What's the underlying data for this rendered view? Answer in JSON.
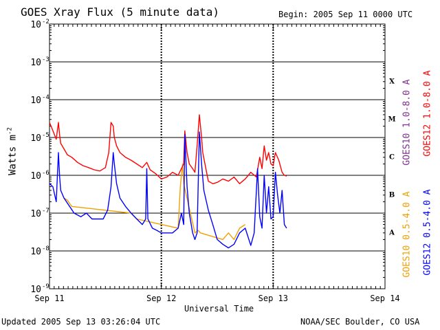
{
  "header": {
    "title": "GOES Xray Flux (5 minute data)",
    "begin": "Begin:  2005 Sep 11 0000 UTC"
  },
  "footer": {
    "updated": "Updated 2005 Sep 13 03:26:04 UTC",
    "credit": "NOAA/SEC Boulder, CO USA"
  },
  "colors": {
    "goes10_long": "#7f2f8f",
    "goes12_long": "#ff0000",
    "goes10_short": "#f0a000",
    "goes12_short": "#0000ff",
    "axis": "#000000"
  },
  "chart_data": {
    "type": "line",
    "title": "GOES Xray Flux (5 minute data)",
    "xlabel": "Universal Time",
    "ylabel": "Watts m",
    "ylabel_superscript": "-2",
    "yscale": "log",
    "ylim": [
      1e-09,
      0.01
    ],
    "xlim": [
      0,
      3
    ],
    "x_units": "days since 2005 Sep 11 0000 UTC",
    "x_ticks": [
      {
        "x": 0,
        "label": "Sep 11"
      },
      {
        "x": 1,
        "label": "Sep 12"
      },
      {
        "x": 2,
        "label": "Sep 13"
      },
      {
        "x": 3,
        "label": "Sep 14"
      }
    ],
    "y_ticks": [
      {
        "exp": -9,
        "base": "10",
        "sup": "-9"
      },
      {
        "exp": -8,
        "base": "10",
        "sup": "-8"
      },
      {
        "exp": -7,
        "base": "10",
        "sup": "-7"
      },
      {
        "exp": -6,
        "base": "10",
        "sup": "-6"
      },
      {
        "exp": -5,
        "base": "10",
        "sup": "-5"
      },
      {
        "exp": -4,
        "base": "10",
        "sup": "-4"
      },
      {
        "exp": -3,
        "base": "10",
        "sup": "-3"
      },
      {
        "exp": -2,
        "base": "10",
        "sup": "-2"
      }
    ],
    "flare_classes": [
      {
        "label": "A",
        "exp": -7.5
      },
      {
        "label": "B",
        "exp": -6.5
      },
      {
        "label": "C",
        "exp": -5.5
      },
      {
        "label": "M",
        "exp": -4.5
      },
      {
        "label": "X",
        "exp": -3.5
      }
    ],
    "gridlines_at": [
      -8,
      -7,
      -6,
      -5,
      -4,
      -3
    ],
    "legend": {
      "placement": "right",
      "entries": [
        {
          "label": "GOES10 1.0-8.0 A",
          "color": "#7f2f8f"
        },
        {
          "label": "GOES12 1.0-8.0 A",
          "color": "#ff0000"
        },
        {
          "label": "GOES10 0.5-4.0 A",
          "color": "#f0a000"
        },
        {
          "label": "GOES12 0.5-4.0 A",
          "color": "#0000ff"
        }
      ]
    },
    "series": [
      {
        "name": "GOES12 1.0-8.0 A",
        "color": "#ff0000",
        "x": [
          0.0,
          0.02,
          0.06,
          0.08,
          0.09,
          0.1,
          0.13,
          0.16,
          0.2,
          0.25,
          0.3,
          0.35,
          0.4,
          0.45,
          0.5,
          0.53,
          0.55,
          0.57,
          0.58,
          0.6,
          0.63,
          0.68,
          0.73,
          0.78,
          0.83,
          0.87,
          0.9,
          0.95,
          1.0,
          1.05,
          1.1,
          1.15,
          1.2,
          1.21,
          1.23,
          1.25,
          1.28,
          1.3,
          1.32,
          1.34,
          1.36,
          1.37,
          1.39,
          1.42,
          1.46,
          1.5,
          1.55,
          1.6,
          1.65,
          1.7,
          1.75,
          1.8,
          1.85,
          1.88,
          1.9,
          1.92,
          1.94,
          1.96,
          1.98,
          2.0,
          2.02,
          2.05,
          2.08,
          2.1,
          2.12
        ],
        "y": [
          2.5e-05,
          1.8e-05,
          9e-06,
          2.5e-05,
          1.2e-05,
          7e-06,
          5e-06,
          3.5e-06,
          3e-06,
          2.2e-06,
          1.8e-06,
          1.6e-06,
          1.4e-06,
          1.3e-06,
          1.6e-06,
          4e-06,
          2.5e-05,
          2e-05,
          1e-05,
          6e-06,
          4e-06,
          3e-06,
          2.5e-06,
          2e-06,
          1.6e-06,
          2.2e-06,
          1.4e-06,
          1.1e-06,
          8e-07,
          9e-07,
          1.2e-06,
          1e-06,
          2e-06,
          1.5e-05,
          4e-06,
          2e-06,
          1.5e-06,
          1.2e-06,
          6e-06,
          4e-05,
          1e-05,
          4e-06,
          2e-06,
          7e-07,
          6e-07,
          6.5e-07,
          8e-07,
          7e-07,
          9e-07,
          6e-07,
          8e-07,
          1.2e-06,
          9e-07,
          3e-06,
          1.5e-06,
          6e-06,
          2.5e-06,
          4e-06,
          2e-06,
          1.8e-06,
          4e-06,
          2.5e-06,
          1.2e-06,
          1e-06,
          9.5e-07
        ]
      },
      {
        "name": "GOES12 0.5-4.0 A",
        "color": "#0000ff",
        "x": [
          0.0,
          0.03,
          0.06,
          0.08,
          0.09,
          0.1,
          0.13,
          0.18,
          0.22,
          0.28,
          0.33,
          0.38,
          0.43,
          0.48,
          0.52,
          0.55,
          0.57,
          0.58,
          0.6,
          0.63,
          0.68,
          0.73,
          0.78,
          0.83,
          0.86,
          0.87,
          0.88,
          0.92,
          0.96,
          1.0,
          1.05,
          1.1,
          1.15,
          1.18,
          1.2,
          1.21,
          1.23,
          1.25,
          1.28,
          1.3,
          1.32,
          1.34,
          1.36,
          1.38,
          1.42,
          1.46,
          1.5,
          1.55,
          1.6,
          1.65,
          1.7,
          1.75,
          1.8,
          1.83,
          1.86,
          1.88,
          1.9,
          1.92,
          1.94,
          1.96,
          1.98,
          2.0,
          2.02,
          2.04,
          2.06,
          2.08,
          2.1,
          2.12
        ],
        "y": [
          6e-07,
          5e-07,
          2e-07,
          4e-06,
          1e-06,
          4e-07,
          2.5e-07,
          1.5e-07,
          1e-07,
          8e-08,
          1e-07,
          7e-08,
          7e-08,
          7e-08,
          1.2e-07,
          5e-07,
          4e-06,
          2e-06,
          6e-07,
          2.5e-07,
          1.5e-07,
          1e-07,
          7e-08,
          5e-08,
          7e-08,
          1.5e-06,
          7e-08,
          4e-08,
          3.5e-08,
          3e-08,
          3e-08,
          3e-08,
          4e-08,
          1e-07,
          5e-08,
          1.2e-05,
          5e-07,
          1e-07,
          3e-08,
          2e-08,
          3e-08,
          1.4e-05,
          2e-06,
          4e-07,
          1.2e-07,
          5e-08,
          2e-08,
          1.5e-08,
          1.2e-08,
          1.5e-08,
          3e-08,
          4e-08,
          1.4e-08,
          3e-08,
          1.5e-06,
          8e-08,
          4e-08,
          1e-06,
          1e-07,
          5e-07,
          7e-08,
          8e-08,
          1.2e-06,
          3e-07,
          1e-07,
          4e-07,
          5e-08,
          4e-08
        ]
      },
      {
        "name": "GOES10 0.5-4.0 A",
        "color": "#f0a000",
        "x": [
          0.13,
          0.16,
          0.18,
          0.2,
          0.73,
          0.76,
          0.78,
          1.15,
          1.17,
          1.19,
          1.2,
          1.3,
          1.33,
          1.35,
          1.55,
          1.6,
          1.65,
          1.7,
          1.75
        ],
        "y": [
          2.5e-07,
          2.2e-07,
          1.8e-07,
          1.5e-07,
          1e-07,
          8e-08,
          7e-08,
          4e-08,
          5e-07,
          2e-06,
          6e-07,
          3e-08,
          3.5e-08,
          3e-08,
          2e-08,
          3e-08,
          2e-08,
          4e-08,
          5e-08
        ]
      }
    ]
  }
}
